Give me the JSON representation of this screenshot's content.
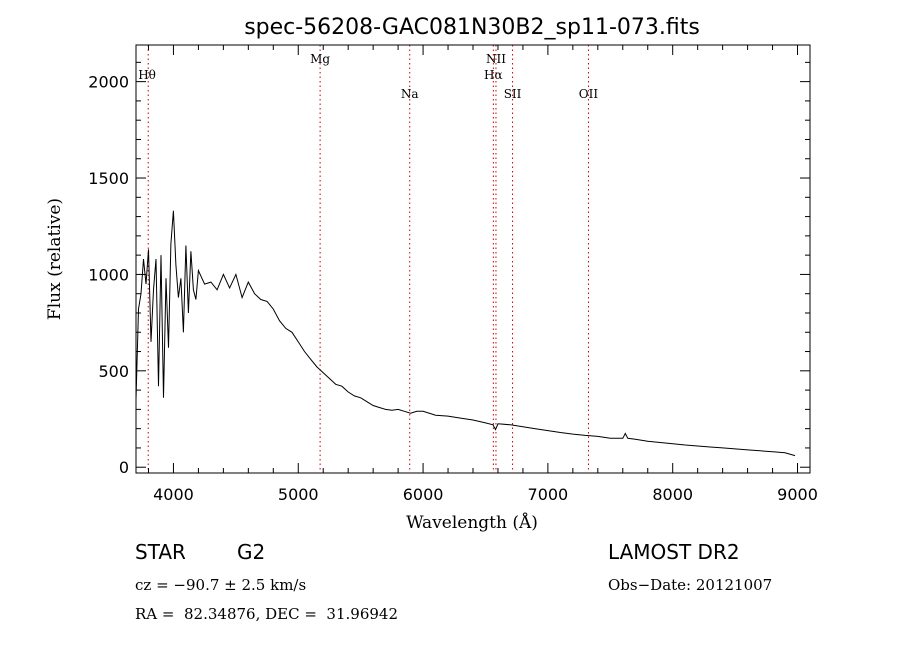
{
  "chart_data": {
    "type": "line",
    "title": "spec-56208-GAC081N30B2_sp11-073.fits",
    "xlabel": "Wavelength (Å)",
    "ylabel": "Flux (relative)",
    "xlim": [
      3700,
      9100
    ],
    "ylim": [
      -30,
      2190
    ],
    "xticks": [
      4000,
      5000,
      6000,
      7000,
      8000,
      9000
    ],
    "yticks": [
      0,
      500,
      1000,
      1500,
      2000
    ],
    "grid": false,
    "line_color": "#000000",
    "marker_color": "#cc0000",
    "series": [
      {
        "x": [
          3700,
          3720,
          3740,
          3760,
          3780,
          3800,
          3820,
          3840,
          3860,
          3880,
          3900,
          3920,
          3940,
          3960,
          3980,
          4000,
          4020,
          4040,
          4060,
          4080,
          4100,
          4120,
          4140,
          4160,
          4180,
          4200,
          4250,
          4300,
          4350,
          4400,
          4450,
          4500,
          4550,
          4600,
          4650,
          4700,
          4750,
          4800,
          4850,
          4900,
          4950,
          5000,
          5050,
          5100,
          5150,
          5200,
          5250,
          5300,
          5350,
          5400,
          5450,
          5500,
          5550,
          5600,
          5650,
          5700,
          5750,
          5800,
          5850,
          5900,
          5950,
          6000,
          6100,
          6200,
          6300,
          6400,
          6500,
          6560,
          6580,
          6600,
          6700,
          6800,
          6900,
          7000,
          7100,
          7200,
          7300,
          7400,
          7500,
          7600,
          7620,
          7640,
          7700,
          7800,
          7900,
          8000,
          8100,
          8200,
          8300,
          8400,
          8500,
          8600,
          8700,
          8800,
          8900,
          8980
        ],
        "y": [
          350,
          820,
          900,
          1080,
          950,
          1130,
          650,
          920,
          1080,
          420,
          1100,
          360,
          980,
          620,
          1160,
          1330,
          1050,
          880,
          980,
          700,
          1150,
          800,
          1120,
          920,
          870,
          1020,
          950,
          960,
          920,
          1000,
          930,
          1000,
          880,
          960,
          900,
          870,
          860,
          820,
          760,
          720,
          700,
          650,
          600,
          560,
          520,
          490,
          460,
          430,
          420,
          390,
          370,
          360,
          340,
          320,
          310,
          300,
          295,
          300,
          290,
          280,
          290,
          290,
          270,
          265,
          255,
          245,
          230,
          220,
          195,
          225,
          220,
          210,
          200,
          190,
          180,
          172,
          165,
          160,
          150,
          150,
          175,
          150,
          145,
          135,
          128,
          122,
          115,
          110,
          105,
          100,
          95,
          90,
          85,
          80,
          75,
          60
        ]
      }
    ],
    "line_markers": [
      {
        "label": "Hθ",
        "wavelength": 3798,
        "label_row": "top"
      },
      {
        "label": "Mg",
        "wavelength": 5175,
        "label_row": "top"
      },
      {
        "label": "Na",
        "wavelength": 5893,
        "label_row": "low"
      },
      {
        "label": "NII",
        "wavelength": 6584,
        "label_row": "top"
      },
      {
        "label": "Hα",
        "wavelength": 6563,
        "label_row": "mid"
      },
      {
        "label": "SII",
        "wavelength": 6717,
        "label_row": "low"
      },
      {
        "label": "OII",
        "wavelength": 7325,
        "label_row": "low"
      }
    ]
  },
  "info": {
    "object_class": "STAR",
    "subclass": "G2",
    "survey": "LAMOST DR2",
    "cz_line": "cz = −90.7 ± 2.5 km/s",
    "obs_date": "Obs−Date: 20121007",
    "coords": "RA =  82.34876, DEC =  31.96942"
  }
}
